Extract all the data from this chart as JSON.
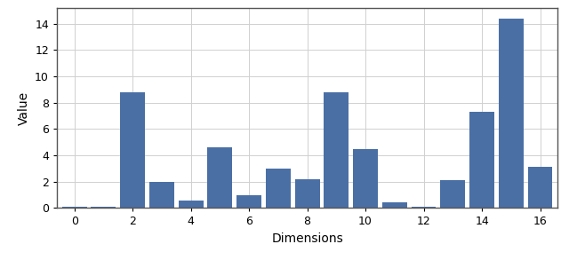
{
  "x": [
    0,
    1,
    2,
    3,
    4,
    5,
    6,
    7,
    8,
    9,
    10,
    11,
    12,
    13,
    14,
    15,
    16
  ],
  "values": [
    0.1,
    0.12,
    8.8,
    2.0,
    0.55,
    4.6,
    1.0,
    3.0,
    2.2,
    8.8,
    4.5,
    0.4,
    0.1,
    2.1,
    7.3,
    14.4,
    3.1
  ],
  "bar_color": "#4a6fa5",
  "bar_width": 0.85,
  "xlabel": "Dimensions",
  "ylabel": "Value",
  "xlim": [
    -0.6,
    16.6
  ],
  "ylim": [
    0,
    15.2
  ],
  "xticks": [
    0,
    2,
    4,
    6,
    8,
    10,
    12,
    14,
    16
  ],
  "yticks": [
    0,
    2,
    4,
    6,
    8,
    10,
    12,
    14
  ],
  "grid_color": "#d0d0d0",
  "background_color": "#ffffff",
  "tick_labelsize": 9,
  "label_fontsize": 10,
  "spine_color": "#555555"
}
